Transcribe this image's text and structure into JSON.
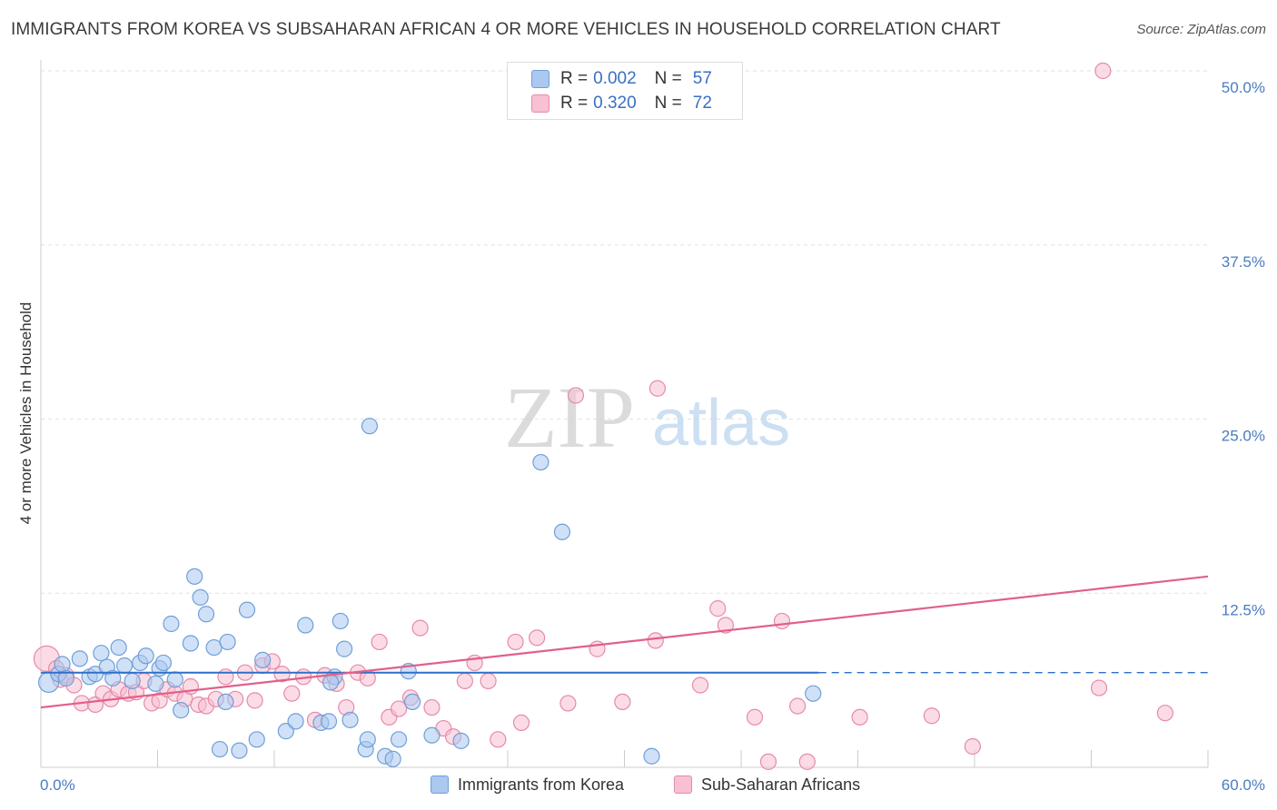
{
  "title": "IMMIGRANTS FROM KOREA VS SUBSAHARAN AFRICAN 4 OR MORE VEHICLES IN HOUSEHOLD CORRELATION CHART",
  "source": "Source: ZipAtlas.com",
  "watermark": {
    "zip": "ZIP",
    "atlas": "atlas"
  },
  "legend": {
    "rows": [
      {
        "r_label": "R =",
        "r_value": "0.002",
        "n_label": "N =",
        "n_value": "57",
        "color": "#aac8f0",
        "border": "#6f9fd8"
      },
      {
        "r_label": "R =",
        "r_value": "0.320",
        "n_label": "N =",
        "n_value": "72",
        "color": "#f8c0d2",
        "border": "#e68aa8"
      }
    ]
  },
  "bottom_legend": {
    "series1": "Immigrants from Korea",
    "series2": "Sub-Saharan Africans"
  },
  "chart_data": {
    "type": "scatter",
    "title": "IMMIGRANTS FROM KOREA VS SUBSAHARAN AFRICAN 4 OR MORE VEHICLES IN HOUSEHOLD CORRELATION CHART",
    "xlabel": "",
    "ylabel": "4 or more Vehicles in Household",
    "xlim": [
      0,
      60
    ],
    "ylim": [
      0,
      50
    ],
    "x_tick_labels": [
      "0.0%",
      "60.0%"
    ],
    "y_tick_labels": [
      "12.5%",
      "25.0%",
      "37.5%",
      "50.0%"
    ],
    "y_ticks": [
      12.5,
      25,
      37.5,
      50
    ],
    "grid": "horizontal dashed",
    "legend_position": "top-center",
    "colors": {
      "korea": "#6f9fd8",
      "korea_fill": "#aac8f0",
      "korea_line": "#2f6fc8",
      "ssa": "#e68aa8",
      "ssa_fill": "#f8c0d2",
      "ssa_line": "#e0608a"
    },
    "series": [
      {
        "name": "Immigrants from Korea",
        "trend": {
          "x": [
            0,
            40
          ],
          "y": [
            6.8,
            6.8
          ],
          "dashed_to": 60
        },
        "points": [
          [
            0.4,
            6.1
          ],
          [
            0.9,
            6.7
          ],
          [
            1.1,
            7.4
          ],
          [
            1.3,
            6.4
          ],
          [
            2.0,
            7.8
          ],
          [
            2.5,
            6.5
          ],
          [
            2.8,
            6.7
          ],
          [
            3.1,
            8.2
          ],
          [
            3.4,
            7.2
          ],
          [
            3.7,
            6.4
          ],
          [
            4.0,
            8.6
          ],
          [
            4.3,
            7.3
          ],
          [
            4.7,
            6.2
          ],
          [
            5.1,
            7.5
          ],
          [
            5.4,
            8.0
          ],
          [
            5.9,
            6.0
          ],
          [
            6.1,
            7.1
          ],
          [
            6.3,
            7.5
          ],
          [
            6.7,
            10.3
          ],
          [
            6.9,
            6.3
          ],
          [
            7.2,
            4.1
          ],
          [
            7.7,
            8.9
          ],
          [
            7.9,
            13.7
          ],
          [
            8.2,
            12.2
          ],
          [
            8.5,
            11.0
          ],
          [
            8.9,
            8.6
          ],
          [
            9.2,
            1.3
          ],
          [
            9.5,
            4.7
          ],
          [
            9.6,
            9.0
          ],
          [
            10.2,
            1.2
          ],
          [
            10.6,
            11.3
          ],
          [
            11.1,
            2.0
          ],
          [
            11.4,
            7.7
          ],
          [
            12.6,
            2.6
          ],
          [
            13.1,
            3.3
          ],
          [
            13.6,
            10.2
          ],
          [
            14.4,
            3.2
          ],
          [
            14.8,
            3.3
          ],
          [
            15.1,
            6.5
          ],
          [
            15.4,
            10.5
          ],
          [
            15.6,
            8.5
          ],
          [
            15.9,
            3.4
          ],
          [
            16.7,
            1.3
          ],
          [
            16.8,
            2.0
          ],
          [
            17.7,
            0.8
          ],
          [
            18.1,
            0.6
          ],
          [
            18.4,
            2.0
          ],
          [
            18.9,
            6.9
          ],
          [
            19.1,
            4.7
          ],
          [
            20.1,
            2.3
          ],
          [
            16.9,
            24.5
          ],
          [
            25.7,
            21.9
          ],
          [
            26.8,
            16.9
          ],
          [
            39.7,
            5.3
          ],
          [
            31.4,
            0.8
          ],
          [
            21.6,
            1.9
          ],
          [
            14.9,
            6.1
          ]
        ]
      },
      {
        "name": "Sub-Saharan Africans",
        "trend": {
          "x": [
            0,
            60
          ],
          "y": [
            4.3,
            13.7
          ]
        },
        "points": [
          [
            0.3,
            7.8
          ],
          [
            0.8,
            7.1
          ],
          [
            1.0,
            6.3
          ],
          [
            1.3,
            6.6
          ],
          [
            1.7,
            5.9
          ],
          [
            2.1,
            4.6
          ],
          [
            2.8,
            4.5
          ],
          [
            3.2,
            5.3
          ],
          [
            3.6,
            4.9
          ],
          [
            4.0,
            5.6
          ],
          [
            4.5,
            5.3
          ],
          [
            4.9,
            5.4
          ],
          [
            5.3,
            6.2
          ],
          [
            5.7,
            4.6
          ],
          [
            6.1,
            4.8
          ],
          [
            6.5,
            5.6
          ],
          [
            6.9,
            5.3
          ],
          [
            7.4,
            4.9
          ],
          [
            7.7,
            5.8
          ],
          [
            8.1,
            4.5
          ],
          [
            8.5,
            4.4
          ],
          [
            9.0,
            4.9
          ],
          [
            9.5,
            6.5
          ],
          [
            10.0,
            4.9
          ],
          [
            10.5,
            6.8
          ],
          [
            11.0,
            4.8
          ],
          [
            11.4,
            7.3
          ],
          [
            11.9,
            7.6
          ],
          [
            12.4,
            6.7
          ],
          [
            12.9,
            5.3
          ],
          [
            13.5,
            6.5
          ],
          [
            14.1,
            3.4
          ],
          [
            14.6,
            6.6
          ],
          [
            15.2,
            6.0
          ],
          [
            15.7,
            4.3
          ],
          [
            16.3,
            6.8
          ],
          [
            16.8,
            6.4
          ],
          [
            17.4,
            9.0
          ],
          [
            17.9,
            3.6
          ],
          [
            18.4,
            4.2
          ],
          [
            19.0,
            5.0
          ],
          [
            19.5,
            10.0
          ],
          [
            20.1,
            4.3
          ],
          [
            20.7,
            2.8
          ],
          [
            21.2,
            2.2
          ],
          [
            21.8,
            6.2
          ],
          [
            22.3,
            7.5
          ],
          [
            23.0,
            6.2
          ],
          [
            23.5,
            2.0
          ],
          [
            24.4,
            9.0
          ],
          [
            24.7,
            3.2
          ],
          [
            25.5,
            9.3
          ],
          [
            27.1,
            4.6
          ],
          [
            28.6,
            8.5
          ],
          [
            29.9,
            4.7
          ],
          [
            31.6,
            9.1
          ],
          [
            33.9,
            5.9
          ],
          [
            34.8,
            11.4
          ],
          [
            35.2,
            10.2
          ],
          [
            36.7,
            3.6
          ],
          [
            37.4,
            0.4
          ],
          [
            38.1,
            10.5
          ],
          [
            38.9,
            4.4
          ],
          [
            39.4,
            0.4
          ],
          [
            42.1,
            3.6
          ],
          [
            45.8,
            3.7
          ],
          [
            47.9,
            1.5
          ],
          [
            54.4,
            5.7
          ],
          [
            57.8,
            3.9
          ],
          [
            27.5,
            26.7
          ],
          [
            31.7,
            27.2
          ],
          [
            54.6,
            50.0
          ]
        ]
      }
    ]
  }
}
